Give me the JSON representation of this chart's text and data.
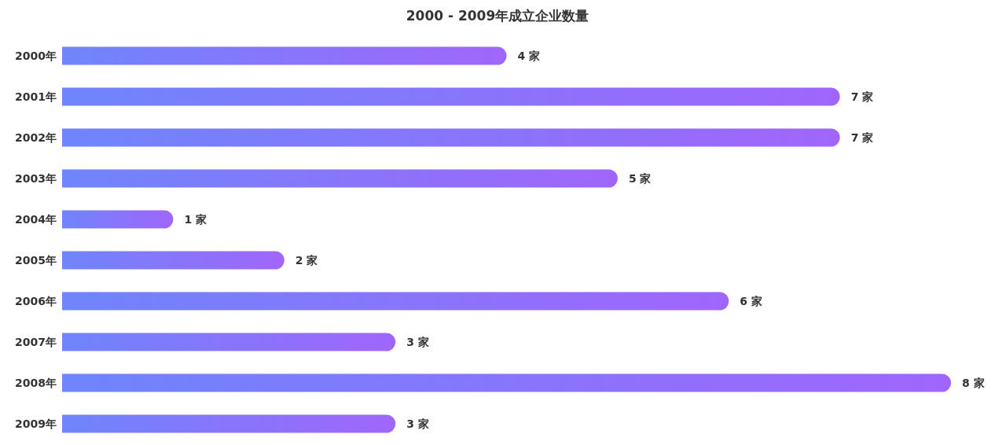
{
  "chart_data": {
    "type": "bar",
    "orientation": "horizontal",
    "title": "2000 - 2009年成立企业数量",
    "categories": [
      "2000年",
      "2001年",
      "2002年",
      "2003年",
      "2004年",
      "2005年",
      "2006年",
      "2007年",
      "2008年",
      "2009年"
    ],
    "values": [
      4,
      7,
      7,
      5,
      1,
      2,
      6,
      3,
      8,
      3
    ],
    "value_labels": [
      "4 家",
      "7 家",
      "7 家",
      "5 家",
      "1 家",
      "2 家",
      "6 家",
      "3 家",
      "8 家",
      "3 家"
    ],
    "color": "#6f85fc"
  }
}
